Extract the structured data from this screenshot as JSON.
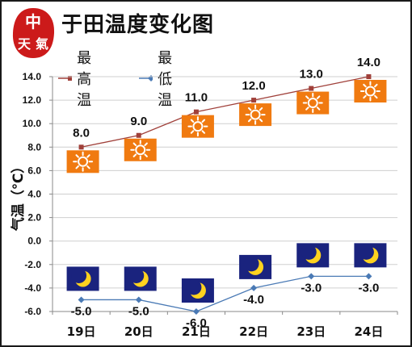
{
  "title": "于田温度变化图",
  "seal_text": "中國天氣",
  "chart_data": {
    "type": "line",
    "categories": [
      "19日",
      "20日",
      "21日",
      "22日",
      "23日",
      "24日"
    ],
    "series": [
      {
        "name": "最高温",
        "values": [
          8.0,
          9.0,
          11.0,
          12.0,
          13.0,
          14.0
        ],
        "color": "#a0403a",
        "marker": "square",
        "weather_icon": "sun-icon"
      },
      {
        "name": "最低温",
        "values": [
          -5.0,
          -5.0,
          -6.0,
          -4.0,
          -3.0,
          -3.0
        ],
        "color": "#4a7ab5",
        "marker": "diamond",
        "weather_icon": "moon-icon"
      }
    ],
    "ylabel": "气温（℃）",
    "xlabel": "",
    "ylim": [
      -6.0,
      14.0
    ],
    "yticks": [
      "-6.0",
      "-4.0",
      "-2.0",
      "0.0",
      "2.0",
      "4.0",
      "6.0",
      "8.0",
      "10.0",
      "12.0",
      "14.0"
    ],
    "data_labels": {
      "high": [
        "8.0",
        "9.0",
        "11.0",
        "12.0",
        "13.0",
        "14.0"
      ],
      "low": [
        "-5.0",
        "-5.0",
        "-6.0",
        "-4.0",
        "-3.0",
        "-3.0"
      ]
    },
    "grid": true,
    "legend": "top-left",
    "colors": {
      "sun_box": "#f07a10",
      "moon_box": "#1a237e",
      "moon": "#ffd21f",
      "grid": "#cfcfcf"
    }
  }
}
